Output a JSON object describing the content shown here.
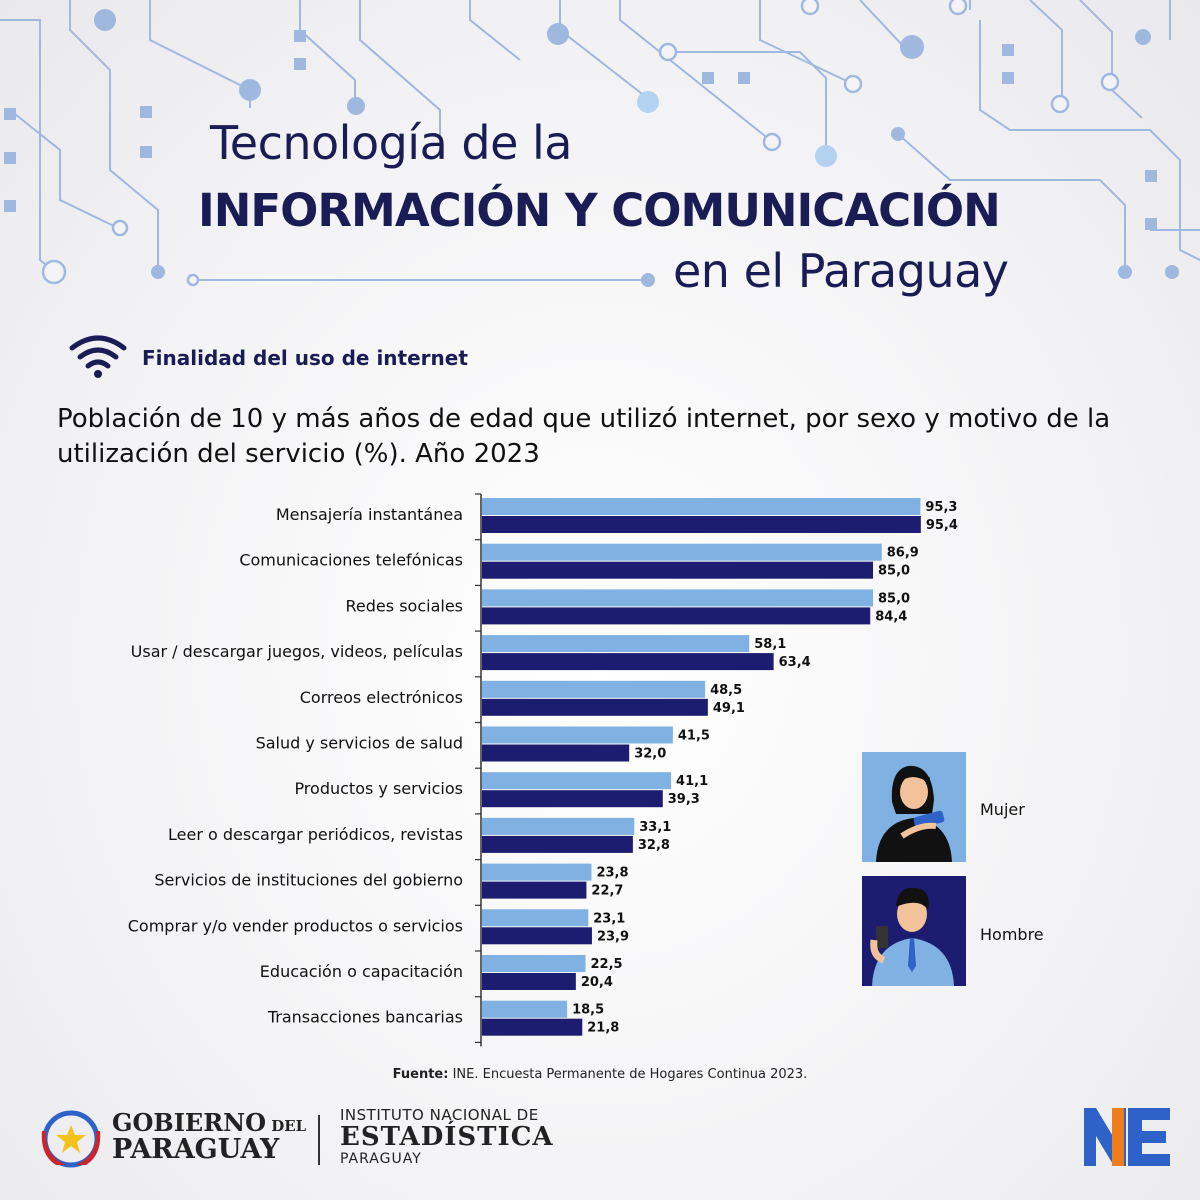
{
  "header": {
    "title_line1": "Tecnología de la",
    "title_line2": "INFORMACIÓN  Y COMUNICACIÓN",
    "title_line3": "en el Paraguay"
  },
  "section": {
    "label": "Finalidad del uso de internet",
    "icon": "wifi-icon"
  },
  "chart_data": {
    "type": "bar",
    "orientation": "horizontal",
    "title": "Población de 10 y más años de edad que utilizó internet, por sexo y motivo de la utilización del servicio (%). Año 2023",
    "categories": [
      "Mensajería instantánea",
      "Comunicaciones telefónicas",
      "Redes sociales",
      "Usar / descargar juegos, videos, películas",
      "Correos electrónicos",
      "Salud y servicios de salud",
      "Productos y servicios",
      "Leer o descargar periódicos, revistas",
      "Servicios de instituciones del gobierno",
      "Comprar y/o vender productos o servicios",
      "Educación o capacitación",
      "Transacciones bancarias"
    ],
    "series": [
      {
        "name": "Mujer",
        "color": "#7fb1e2",
        "values": [
          95.3,
          86.9,
          85.0,
          58.1,
          48.5,
          41.5,
          41.1,
          33.1,
          23.8,
          23.1,
          22.5,
          18.5
        ],
        "labels": [
          "95,3",
          "86,9",
          "85,0",
          "58,1",
          "48,5",
          "41,5",
          "41,1",
          "33,1",
          "23,8",
          "23,1",
          "22,5",
          "18,5"
        ]
      },
      {
        "name": "Hombre",
        "color": "#1c1c70",
        "values": [
          95.4,
          85.0,
          84.4,
          63.4,
          49.1,
          32.0,
          39.3,
          32.8,
          22.7,
          23.9,
          20.4,
          21.8
        ],
        "labels": [
          "95,4",
          "85,0",
          "84,4",
          "63,4",
          "49,1",
          "32,0",
          "39,3",
          "32,8",
          "22,7",
          "23,9",
          "20,4",
          "21,8"
        ]
      }
    ],
    "xlim": [
      0,
      100
    ],
    "legend": "right"
  },
  "legend": {
    "mujer": "Mujer",
    "hombre": "Hombre"
  },
  "source": {
    "bold": "Fuente:",
    "text": " INE. Encuesta Permanente de Hogares Continua 2023."
  },
  "footer": {
    "gov_line1": "GOBIERNO",
    "gov_line1_small": " DEL",
    "gov_line2": "PARAGUAY",
    "ine_line1": "INSTITUTO NACIONAL DE",
    "ine_line2": "ESTADÍSTICA",
    "ine_line3": "PARAGUAY"
  }
}
